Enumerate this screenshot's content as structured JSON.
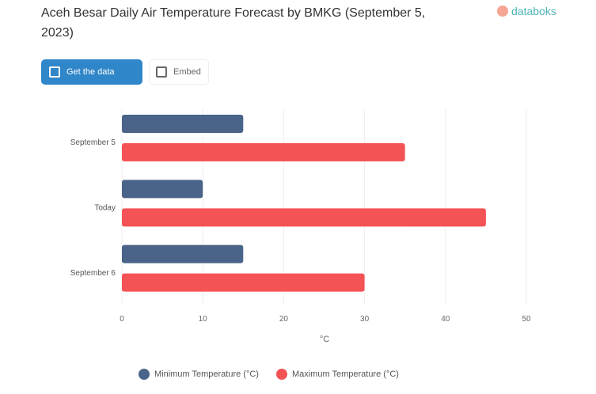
{
  "header": {
    "title": "Aceh Besar Daily Air Temperature Forecast by BMKG (September 5, 2023)",
    "logo_text": "databoks"
  },
  "toolbar": {
    "data_label": "Get the data",
    "embed_label": "Embed"
  },
  "colors": {
    "min": "#4a6388",
    "max": "#f45356",
    "accent": "#2f86c8"
  },
  "chart_data": {
    "type": "bar",
    "orientation": "horizontal",
    "categories": [
      "September 5",
      "Today",
      "September 6"
    ],
    "series": [
      {
        "name": "Minimum Temperature (°C)",
        "values": [
          15,
          10,
          15
        ]
      },
      {
        "name": "Maximum Temperature (°C)",
        "values": [
          35,
          45,
          30
        ]
      }
    ],
    "xlabel": "°C",
    "xlim": [
      0,
      50
    ],
    "ticks": [
      "0",
      "10",
      "20",
      "30",
      "40",
      "50"
    ],
    "grid": true,
    "legend": "bottom"
  }
}
